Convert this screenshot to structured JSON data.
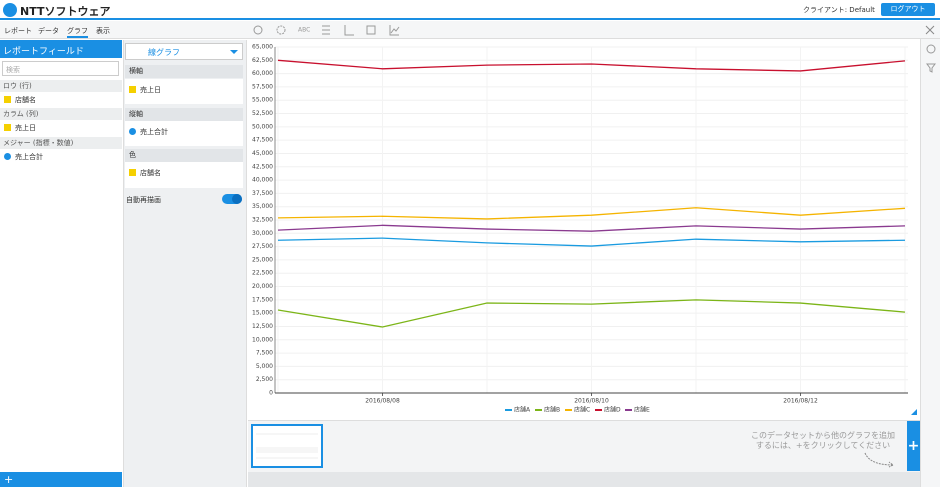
{
  "header": {
    "logo": "NTTソフトウェア",
    "client": "クライアント: Default",
    "logout": "ログアウト"
  },
  "tabs": [
    "レポート",
    "データ",
    "グラフ",
    "表示"
  ],
  "field_panel": {
    "title": "レポートフィールド",
    "search_placeholder": "検索",
    "sections": [
      {
        "label": "ロウ (行)",
        "items": [
          "店舗名"
        ]
      },
      {
        "label": "カラム (列)",
        "items": [
          "売上日"
        ]
      },
      {
        "label": "メジャー (指標・数値)",
        "items": [
          "売上合計"
        ]
      }
    ],
    "add": "+"
  },
  "graph_panel": {
    "chart_type": "線グラフ",
    "slots": [
      {
        "label": "横軸",
        "item": "売上日"
      },
      {
        "label": "縦軸",
        "item": "売上合計"
      },
      {
        "label": "色",
        "item": "店舗名"
      }
    ],
    "auto_redraw": "自動再描画"
  },
  "toolbar": {
    "abc": "ABC"
  },
  "chart_data": {
    "type": "line",
    "categories": [
      null,
      "2016/08/08",
      null,
      "2016/08/10",
      null,
      "2016/08/12",
      null
    ],
    "series": [
      {
        "name": "店舗A",
        "color": "#1a9be0",
        "values": [
          28700,
          29100,
          28200,
          27600,
          28900,
          28400,
          28700
        ]
      },
      {
        "name": "店舗B",
        "color": "#7cb518",
        "values": [
          15600,
          12400,
          16900,
          16700,
          17500,
          16900,
          15200
        ]
      },
      {
        "name": "店舗C",
        "color": "#f5b400",
        "values": [
          32900,
          33200,
          32700,
          33400,
          34800,
          33400,
          34700
        ]
      },
      {
        "name": "店舗D",
        "color": "#c8102e",
        "values": [
          62500,
          60900,
          61600,
          61800,
          60900,
          60500,
          62400
        ]
      },
      {
        "name": "店舗E",
        "color": "#8a3a8f",
        "values": [
          30600,
          31500,
          30800,
          30400,
          31400,
          30800,
          31400
        ]
      }
    ],
    "ylim": [
      0,
      65000
    ],
    "yticks": [
      0,
      {
        "value": 2500,
        "label": "2,500"
      },
      {
        "value": 5000,
        "label": "5,000"
      },
      {
        "value": 7500,
        "label": "7,500"
      },
      {
        "value": 10000,
        "label": "10,000"
      },
      {
        "value": 12500,
        "label": "12,500"
      },
      {
        "value": 15000,
        "label": "15,000"
      },
      {
        "value": 17500,
        "label": "17,500"
      },
      {
        "value": 20000,
        "label": "20,000"
      },
      {
        "value": 22500,
        "label": "22,500"
      },
      {
        "value": 25000,
        "label": "25,000"
      },
      {
        "value": 27500,
        "label": "27,500"
      },
      {
        "value": 30000,
        "label": "30,000"
      },
      {
        "value": 32500,
        "label": "32,500"
      },
      {
        "value": 35000,
        "label": "35,000"
      },
      {
        "value": 37500,
        "label": "37,500"
      },
      {
        "value": 40000,
        "label": "40,000"
      },
      {
        "value": 42500,
        "label": "42,500"
      },
      {
        "value": 45000,
        "label": "45,000"
      },
      {
        "value": 47500,
        "label": "47,500"
      },
      {
        "value": 50000,
        "label": "50,000"
      },
      {
        "value": 52500,
        "label": "52,500"
      },
      {
        "value": 55000,
        "label": "55,000"
      },
      {
        "value": 57500,
        "label": "57,500"
      },
      {
        "value": 60000,
        "label": "60,000"
      },
      {
        "value": 62500,
        "label": "62,500"
      },
      {
        "value": 65000,
        "label": "65,000"
      }
    ],
    "grid": true
  },
  "add_hint": {
    "lines": [
      "このデータセットから他のグラフを追加",
      "するには、+をクリックしてください"
    ],
    "button": "+"
  }
}
